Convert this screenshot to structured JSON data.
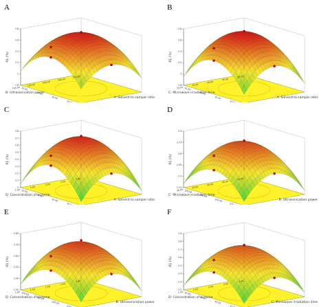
{
  "chart_data": [
    {
      "type": "surface3d",
      "panel_label": "A",
      "zlabel": "R1 (%)",
      "xlabel": "A: Solvent to sample ratio",
      "ylabel": "B: Ultrasonication power",
      "x_ticks": [
        "20.00",
        "25.00",
        "30.00",
        "35.00",
        "40.00"
      ],
      "y_ticks": [
        "100.00",
        "150.00",
        "200.00",
        "250.00",
        "300.00"
      ],
      "z_ticks": [
        "1.8",
        "2",
        "2.2",
        "2.4",
        "2.6",
        "2.8"
      ],
      "zlim": [
        1.8,
        2.8
      ],
      "surface": {
        "center": 2.78,
        "corner_min": 2.05,
        "curvature_x": 0.55,
        "curvature_y": 0.45
      },
      "design_points_shown": true
    },
    {
      "type": "surface3d",
      "panel_label": "B",
      "zlabel": "R1 (%)",
      "xlabel": "A: Solvent to sample ratio",
      "ylabel": "C: Microwave irradiation time",
      "x_ticks": [
        "20.00",
        "25.00",
        "30.00",
        "35.00",
        "40.00"
      ],
      "y_ticks": [
        "30.00",
        "35.00",
        "40.00",
        "45.00",
        "50.00"
      ],
      "z_ticks": [
        "1.8",
        "2",
        "2.2",
        "2.4",
        "2.6",
        "2.8"
      ],
      "zlim": [
        1.8,
        2.8
      ],
      "surface": {
        "center": 2.8,
        "corner_min": 1.95,
        "curvature_x": 0.6,
        "curvature_y": 0.55
      },
      "design_points_shown": true
    },
    {
      "type": "surface3d",
      "panel_label": "C",
      "zlabel": "R1 (%)",
      "xlabel": "A: Solvent to sample ratio",
      "ylabel": "D: Concentration of enzyme",
      "x_ticks": [
        "20.00",
        "25.00",
        "30.00",
        "35.00",
        "40.00"
      ],
      "y_ticks": [
        "1.00",
        "1.50",
        "2.00",
        "2.50",
        "3.00"
      ],
      "z_ticks": [
        "2",
        "2.1",
        "2.2",
        "2.3",
        "2.4",
        "2.5",
        "2.6",
        "2.7",
        "2.8"
      ],
      "zlim": [
        2.0,
        2.8
      ],
      "surface": {
        "center": 2.76,
        "corner_min": 2.05,
        "curvature_x": 0.6,
        "curvature_y": 0.5
      },
      "design_points_shown": true
    },
    {
      "type": "surface3d",
      "panel_label": "D",
      "zlabel": "R1 (%)",
      "xlabel": "B: Ultrasonication power",
      "ylabel": "C: Microwave irradiation time",
      "x_ticks": [
        "100.00",
        "150.00",
        "200.00",
        "250.00",
        "300.00"
      ],
      "y_ticks": [
        "30.00",
        "35.00",
        "40.00",
        "45.00",
        "50.00"
      ],
      "z_ticks": [
        "2.15",
        "2.3",
        "2.45",
        "2.6",
        "2.75",
        "2.9"
      ],
      "zlim": [
        2.15,
        2.9
      ],
      "surface": {
        "center": 2.8,
        "corner_min": 2.2,
        "curvature_x": 0.55,
        "curvature_y": 0.55
      },
      "design_points_shown": true
    },
    {
      "type": "surface3d",
      "panel_label": "E",
      "zlabel": "R1 (%)",
      "xlabel": "B: Ultrasonication power",
      "ylabel": "D: Concentration of enzyme",
      "x_ticks": [
        "100.00",
        "150.00",
        "200.00",
        "250.00",
        "300.00"
      ],
      "y_ticks": [
        "1.00",
        "1.50",
        "2.00",
        "2.50",
        "3.00"
      ],
      "z_ticks": [
        "2.35",
        "2.45",
        "2.55",
        "2.65",
        "2.75",
        "2.85"
      ],
      "zlim": [
        2.35,
        2.85
      ],
      "surface": {
        "center": 2.8,
        "corner_min": 2.4,
        "curvature_x": 0.5,
        "curvature_y": 0.5
      },
      "design_points_shown": true
    },
    {
      "type": "surface3d",
      "panel_label": "F",
      "zlabel": "R1 (%)",
      "xlabel": "C: Microwave irradiation time",
      "ylabel": "D: Concentration of enzyme",
      "x_ticks": [
        "30.00",
        "35.00",
        "40.00",
        "45.00",
        "50.00"
      ],
      "y_ticks": [
        "1.00",
        "1.50",
        "2.00",
        "2.50",
        "3.00"
      ],
      "z_ticks": [
        "2.2",
        "2.3",
        "2.4",
        "2.5",
        "2.6",
        "2.7",
        "2.8",
        "2.9"
      ],
      "zlim": [
        2.2,
        2.9
      ],
      "surface": {
        "center": 2.78,
        "corner_min": 2.25,
        "curvature_x": 0.55,
        "curvature_y": 0.5
      },
      "design_points_shown": true
    }
  ],
  "colors": {
    "surface_high": "#d7191c",
    "surface_mid": "#f5e52e",
    "surface_low": "#2ecc40",
    "floor": "#fff22b",
    "design_point": "#cc0000",
    "axis": "#555555"
  }
}
